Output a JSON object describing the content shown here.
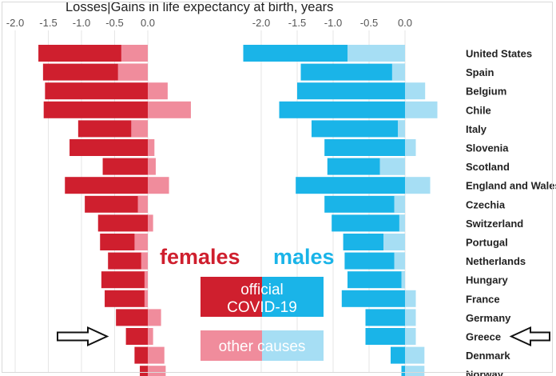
{
  "chart_data": {
    "type": "bar",
    "title": "Losses|Gains in life expectancy at birth, years",
    "countries": [
      "United States",
      "Spain",
      "Belgium",
      "Chile",
      "Italy",
      "Slovenia",
      "Scotland",
      "England and Wales",
      "Czechia",
      "Switzerland",
      "Portugal",
      "Netherlands",
      "Hungary",
      "France",
      "Germany",
      "Greece",
      "Denmark",
      "Norway"
    ],
    "axis_ticks": [
      "-2.0",
      "-1.5",
      "-1.0",
      "-0.5",
      "0.0"
    ],
    "xlim": [
      -2.0,
      0.4
    ],
    "panels": [
      {
        "name": "females",
        "color_official": "#cf1f2e",
        "color_other": "#f08c9c",
        "official_covid19": [
          -1.65,
          -1.58,
          -1.55,
          -1.57,
          -1.05,
          -1.18,
          -0.68,
          -1.25,
          -0.95,
          -0.75,
          -0.72,
          -0.6,
          -0.7,
          -0.65,
          -0.48,
          -0.33,
          -0.2,
          -0.12
        ],
        "other_causes": [
          -0.4,
          -0.45,
          0.3,
          0.65,
          -0.25,
          0.1,
          0.12,
          0.32,
          -0.15,
          0.08,
          -0.2,
          -0.1,
          -0.05,
          -0.05,
          0.2,
          0.08,
          0.25,
          0.27
        ]
      },
      {
        "name": "males",
        "color_official": "#1ab4e8",
        "color_other": "#a6def4",
        "official_covid19": [
          -2.25,
          -1.45,
          -1.5,
          -1.75,
          -1.3,
          -1.12,
          -1.08,
          -1.52,
          -1.12,
          -1.02,
          -0.86,
          -0.84,
          -0.8,
          -0.88,
          -0.55,
          -0.55,
          -0.2,
          -0.05
        ],
        "other_causes": [
          -0.8,
          -0.18,
          0.28,
          0.45,
          -0.1,
          0.15,
          -0.35,
          0.35,
          -0.15,
          -0.08,
          -0.3,
          -0.15,
          -0.05,
          0.15,
          0.15,
          0.15,
          0.27,
          0.27
        ]
      }
    ],
    "legend": {
      "females": "females",
      "males": "males",
      "official": "official COVID-19",
      "other": "other causes"
    },
    "highlighted": "Greece"
  }
}
